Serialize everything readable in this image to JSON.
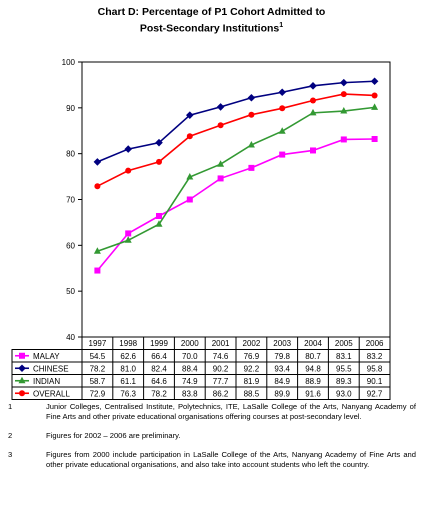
{
  "title_line1": "Chart D: Percentage of P1 Cohort Admitted to",
  "title_line2": "Post-Secondary Institutions",
  "title_sup": "1",
  "chart_data": {
    "type": "line",
    "categories": [
      "1997",
      "1998",
      "1999",
      "2000",
      "2001",
      "2002",
      "2003",
      "2004",
      "2005",
      "2006"
    ],
    "ylim": [
      40,
      100
    ],
    "yticks": [
      "40",
      "50",
      "60",
      "70",
      "80",
      "90",
      "100"
    ],
    "legend_placement": "table-below",
    "grid": false,
    "series": [
      {
        "name": "MALAY",
        "color": "#ff00ff",
        "marker": "square",
        "values": [
          54.5,
          62.6,
          66.4,
          70.0,
          74.6,
          76.9,
          79.8,
          80.7,
          83.1,
          83.2
        ],
        "labels": [
          "54.5",
          "62.6",
          "66.4",
          "70.0",
          "74.6",
          "76.9",
          "79.8",
          "80.7",
          "83.1",
          "83.2"
        ]
      },
      {
        "name": "CHINESE",
        "color": "#000080",
        "marker": "diamond",
        "values": [
          78.2,
          81.0,
          82.4,
          88.4,
          90.2,
          92.2,
          93.4,
          94.8,
          95.5,
          95.8
        ],
        "labels": [
          "78.2",
          "81.0",
          "82.4",
          "88.4",
          "90.2",
          "92.2",
          "93.4",
          "94.8",
          "95.5",
          "95.8"
        ]
      },
      {
        "name": "INDIAN",
        "color": "#339933",
        "marker": "triangle",
        "values": [
          58.7,
          61.1,
          64.6,
          74.9,
          77.7,
          81.9,
          84.9,
          88.9,
          89.3,
          90.1
        ],
        "labels": [
          "58.7",
          "61.1",
          "64.6",
          "74.9",
          "77.7",
          "81.9",
          "84.9",
          "88.9",
          "89.3",
          "90.1"
        ]
      },
      {
        "name": "OVERALL",
        "color": "#ff0000",
        "marker": "circle",
        "values": [
          72.9,
          76.3,
          78.2,
          83.8,
          86.2,
          88.5,
          89.9,
          91.6,
          93.0,
          92.7
        ],
        "labels": [
          "72.9",
          "76.3",
          "78.2",
          "83.8",
          "86.2",
          "88.5",
          "89.9",
          "91.6",
          "93.0",
          "92.7"
        ]
      }
    ]
  },
  "footnotes": [
    {
      "num": "1",
      "text": "Junior Colleges, Centralised Institute, Polytechnics, ITE, LaSalle College of the Arts, Nanyang Academy of Fine Arts and other private educational organisations offering courses at post-secondary level."
    },
    {
      "num": "2",
      "text": "Figures for 2002 – 2006 are preliminary."
    },
    {
      "num": "3",
      "text": "Figures from 2000 include participation in LaSalle College of the Arts, Nanyang Academy of Fine Arts and other private educational organisations, and also take into account students who left the country."
    }
  ]
}
